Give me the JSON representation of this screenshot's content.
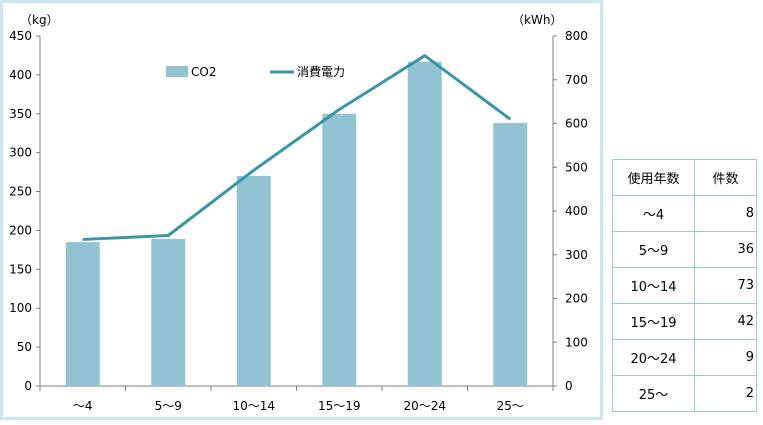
{
  "chart_data": {
    "type": "bar+line",
    "categories": [
      "～4",
      "5～9",
      "10～14",
      "15～19",
      "20～24",
      "25～"
    ],
    "series": [
      {
        "name": "CO2",
        "type": "bar",
        "axis": "left",
        "values": [
          185,
          189,
          270,
          350,
          417,
          338
        ],
        "color": "#92c3d3"
      },
      {
        "name": "消費電力",
        "type": "line",
        "axis": "right",
        "values": [
          335,
          344,
          493,
          632,
          755,
          610
        ],
        "color": "#3a95a8"
      }
    ],
    "y_left": {
      "unit_label": "（kg）",
      "range": [
        0,
        450
      ],
      "ticks": [
        0,
        50,
        100,
        150,
        200,
        250,
        300,
        350,
        400,
        450
      ]
    },
    "y_right": {
      "unit_label": "（kWh）",
      "range": [
        0,
        800
      ],
      "ticks": [
        0,
        100,
        200,
        300,
        400,
        500,
        600,
        700,
        800
      ]
    },
    "grid": false,
    "legend": "top-center"
  },
  "table": {
    "headers": [
      "使用年数",
      "件数"
    ],
    "rows": [
      {
        "years": "～4",
        "count": "8"
      },
      {
        "years": "5～9",
        "count": "36"
      },
      {
        "years": "10～14",
        "count": "73"
      },
      {
        "years": "15～19",
        "count": "42"
      },
      {
        "years": "20～24",
        "count": "9"
      },
      {
        "years": "25～",
        "count": "2"
      }
    ]
  },
  "colors": {
    "frame_border": "#cce8ee",
    "axis": "#7f7f7f",
    "table_border": "#9cc8d8"
  }
}
